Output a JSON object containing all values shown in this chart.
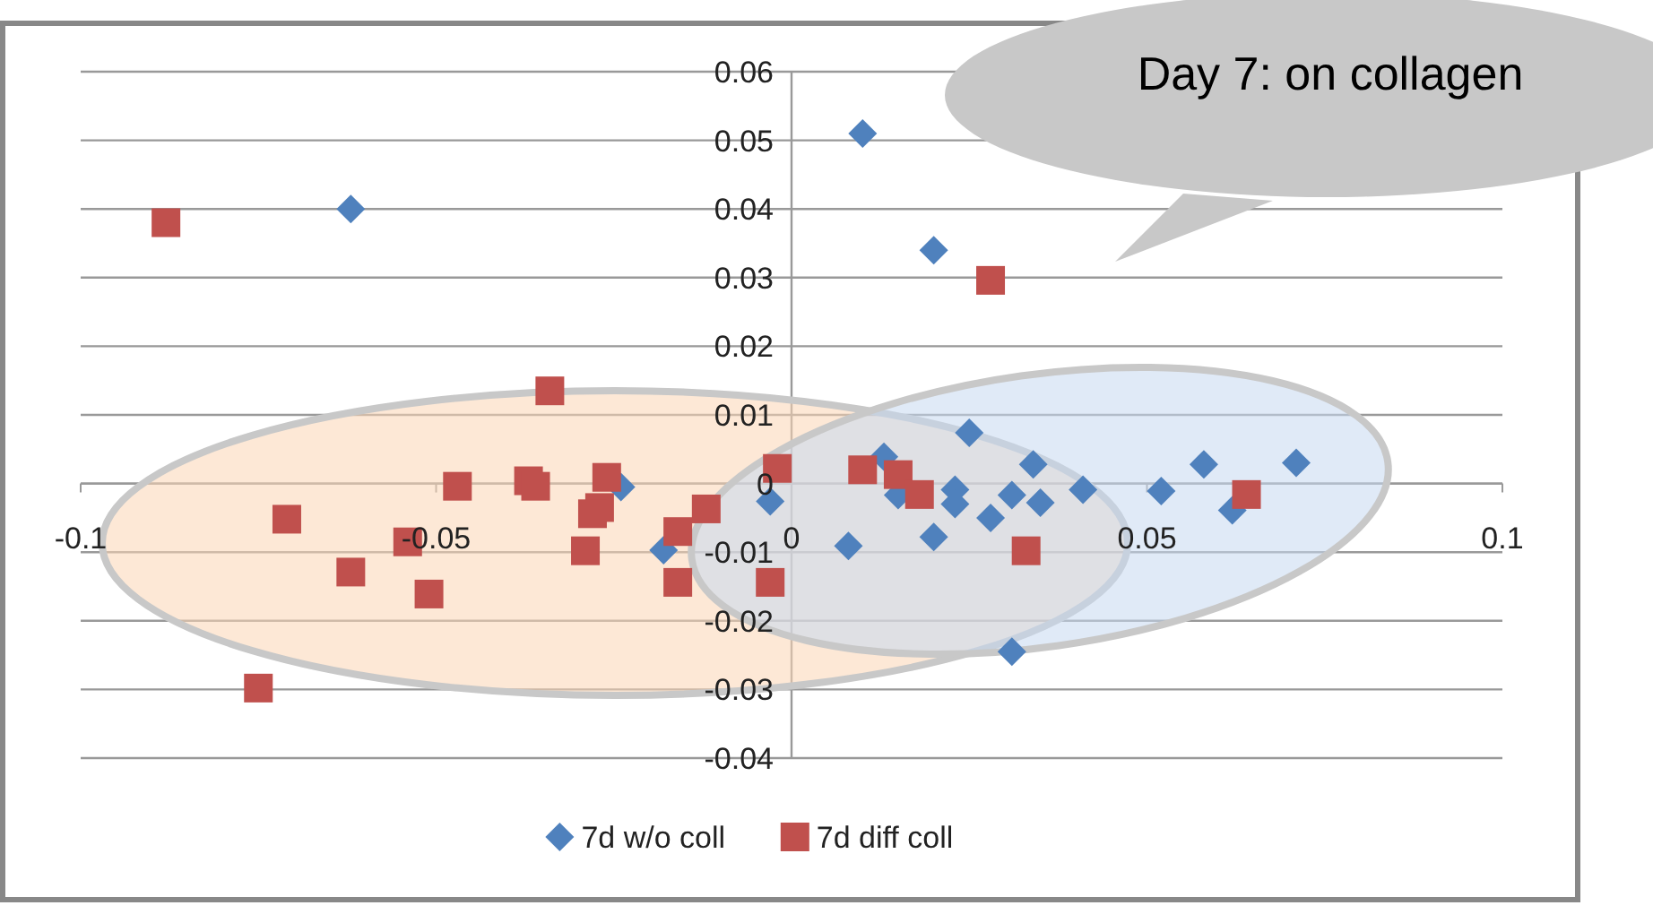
{
  "chart_data": {
    "type": "scatter",
    "xlim": [
      -0.1,
      0.1
    ],
    "ylim": [
      -0.04,
      0.06
    ],
    "xticks": [
      -0.1,
      -0.05,
      0,
      0.05,
      0.1
    ],
    "yticks": [
      -0.04,
      -0.03,
      -0.02,
      -0.01,
      0,
      0.01,
      0.02,
      0.03,
      0.04,
      0.05,
      0.06
    ],
    "grid": "y",
    "legend": "bottom",
    "annotations": [
      "Day 7: on collagen"
    ],
    "series": [
      {
        "name": "7d w/o coll",
        "color": "#4f81bd",
        "marker": "diamond",
        "x": [
          -0.062,
          0.01,
          0.02,
          -0.024,
          -0.018,
          -0.003,
          0.025,
          0.013,
          0.015,
          0.023,
          0.023,
          0.02,
          0.008,
          0.028,
          0.031,
          0.034,
          0.035,
          0.041,
          0.052,
          0.058,
          0.062,
          0.071,
          0.031
        ],
        "values": [
          0.04,
          0.051,
          0.034,
          -0.0005,
          -0.0097,
          -0.0026,
          0.0074,
          0.0039,
          -0.0017,
          -0.0009,
          -0.003,
          -0.0078,
          -0.0091,
          -0.005,
          -0.0017,
          0.0028,
          -0.0028,
          -0.0009,
          -0.0011,
          0.0028,
          -0.0039,
          0.003,
          -0.0245
        ]
      },
      {
        "name": "7d diff coll",
        "color": "#c0504d",
        "marker": "square",
        "x": [
          -0.088,
          -0.034,
          0.028,
          -0.002,
          -0.047,
          -0.037,
          -0.036,
          -0.026,
          -0.027,
          -0.028,
          -0.029,
          -0.071,
          -0.062,
          -0.054,
          -0.051,
          -0.012,
          -0.016,
          -0.016,
          -0.003,
          -0.075,
          0.01,
          0.015,
          0.018,
          0.033,
          0.064
        ],
        "values": [
          0.038,
          0.0135,
          0.0296,
          0.0022,
          -0.0004,
          0.0004,
          -0.0004,
          0.0009,
          -0.0035,
          -0.0044,
          -0.0098,
          -0.0052,
          -0.0129,
          -0.0085,
          -0.0161,
          -0.0037,
          -0.007,
          -0.0144,
          -0.0144,
          -0.0298,
          0.002,
          0.0013,
          -0.0016,
          -0.0098,
          -0.0016
        ]
      }
    ]
  }
}
